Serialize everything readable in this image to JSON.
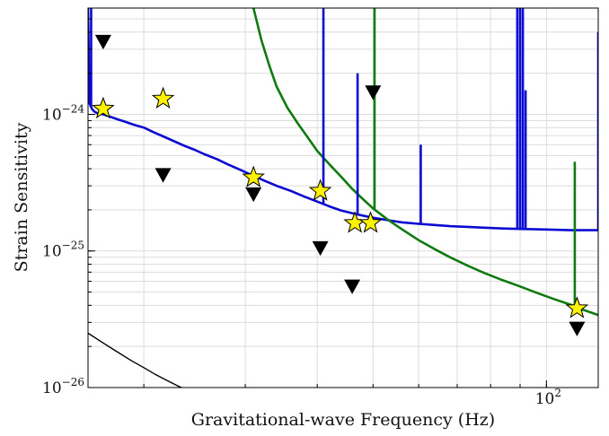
{
  "chart_data": {
    "type": "line",
    "title": "",
    "xlabel": "Gravitational-wave Frequency (Hz)",
    "ylabel": "Strain Sensitivity",
    "xscale": "log",
    "yscale": "log",
    "xlim": [
      16.0,
      123.0
    ],
    "ylim": [
      1e-26,
      6e-24
    ],
    "grid": true,
    "legend": "none",
    "x_ticks": [
      {
        "value": 100,
        "base": "10",
        "exp": "2"
      }
    ],
    "y_ticks": [
      {
        "value": 1e-26,
        "base": "10",
        "exp": "−26"
      },
      {
        "value": 1e-25,
        "base": "10",
        "exp": "−25"
      },
      {
        "value": 1e-24,
        "base": "10",
        "exp": "−24"
      }
    ],
    "colors": {
      "blue_curve": "#0a0ad2",
      "green_curve": "#0f7a0f",
      "black_curve": "#000000",
      "star_fill": "#fff200",
      "triangle_fill": "#000000",
      "grid": "#dcdcdc"
    },
    "series": [
      {
        "style": "blue-line",
        "x": [
          16.0,
          16.1,
          16.25,
          16.4,
          16.6,
          17.0,
          17.5,
          18.0,
          18.6,
          19.2,
          20.0,
          20.8,
          21.6,
          22.5,
          23.5,
          24.5,
          25.5,
          26.8,
          28.0,
          29.5,
          31.0,
          32.5,
          34.0,
          36.0,
          38.0,
          40.0,
          42.0,
          44.0,
          47.0,
          50.0,
          53.0,
          56.0,
          60.0,
          64.0,
          68.0,
          73.0,
          78.0,
          84.0,
          90.0,
          96.0,
          103.0,
          110.0,
          116.0,
          123.0
        ],
        "y": [
          6e-24,
          1.2e-24,
          1.1e-24,
          1.05e-24,
          1.02e-24,
          1e-24,
          9.6e-25,
          9.2e-25,
          8.8e-25,
          8.4e-25,
          8e-25,
          7.4e-25,
          6.9e-25,
          6.4e-25,
          5.9e-25,
          5.5e-25,
          5.1e-25,
          4.7e-25,
          4.3e-25,
          3.9e-25,
          3.55e-25,
          3.25e-25,
          3e-25,
          2.75e-25,
          2.5e-25,
          2.3e-25,
          2.12e-25,
          1.98e-25,
          1.85e-25,
          1.75e-25,
          1.68e-25,
          1.62e-25,
          1.58e-25,
          1.55e-25,
          1.52e-25,
          1.5e-25,
          1.48e-25,
          1.46e-25,
          1.45e-25,
          1.44e-25,
          1.43e-25,
          1.42e-25,
          1.42e-25,
          1.42e-25
        ]
      },
      {
        "style": "green-line",
        "x": [
          31.0,
          32.0,
          33.0,
          34.0,
          35.5,
          37.0,
          38.5,
          40.0,
          42.0,
          44.0,
          46.0,
          48.0,
          50.0,
          53.0,
          56.0,
          60.0,
          64.0,
          68.0,
          73.0,
          78.0,
          84.0,
          90.0,
          96.0,
          103.0,
          110.0,
          116.0,
          123.0
        ],
        "y": [
          6e-24,
          3.5e-24,
          2.3e-24,
          1.6e-24,
          1.12e-24,
          8.6e-25,
          6.8e-25,
          5.4e-25,
          4.3e-25,
          3.5e-25,
          2.85e-25,
          2.4e-25,
          2.05e-25,
          1.7e-25,
          1.45e-25,
          1.2e-25,
          1.03e-25,
          9e-26,
          7.8e-26,
          6.9e-26,
          6.1e-26,
          5.5e-26,
          4.95e-26,
          4.45e-26,
          4.05e-26,
          3.7e-26,
          3.4e-26
        ]
      },
      {
        "style": "black-line",
        "x": [
          16.0,
          17.0,
          18.0,
          19.0,
          20.0,
          21.0,
          22.0,
          23.0,
          24.3
        ],
        "y": [
          2.5e-26,
          2.12e-26,
          1.82e-26,
          1.58e-26,
          1.4e-26,
          1.24e-26,
          1.12e-26,
          1.02e-26,
          9.2e-27
        ]
      }
    ],
    "spikes": [
      {
        "style": "blue-line",
        "x": 16.2,
        "y": 6e-24
      },
      {
        "style": "blue-line",
        "x": 41.0,
        "y": 6e-24
      },
      {
        "style": "blue-line",
        "x": 47.0,
        "y": 2e-24
      },
      {
        "style": "blue-line",
        "x": 60.5,
        "y": 6e-25
      },
      {
        "style": "blue-line",
        "x": 89.0,
        "y": 6e-24
      },
      {
        "style": "blue-line",
        "x": 90.0,
        "y": 6e-24
      },
      {
        "style": "blue-line",
        "x": 91.0,
        "y": 6e-24
      },
      {
        "style": "blue-line",
        "x": 92.0,
        "y": 1.5e-24
      },
      {
        "style": "blue-line",
        "x": 123.0,
        "y": 4e-24
      },
      {
        "style": "green-line",
        "x": 50.3,
        "y": 6e-24
      },
      {
        "style": "green-line",
        "x": 112.0,
        "y": 4.5e-25
      }
    ],
    "stars": [
      {
        "x": 17.0,
        "y": 1.1e-24
      },
      {
        "x": 21.6,
        "y": 1.3e-24
      },
      {
        "x": 31.0,
        "y": 3.45e-25
      },
      {
        "x": 40.5,
        "y": 2.75e-25
      },
      {
        "x": 46.5,
        "y": 1.6e-25
      },
      {
        "x": 49.5,
        "y": 1.6e-25
      },
      {
        "x": 113.0,
        "y": 3.8e-26
      }
    ],
    "triangles": [
      {
        "x": 17.0,
        "y": 3.4e-24
      },
      {
        "x": 21.6,
        "y": 3.6e-25
      },
      {
        "x": 31.0,
        "y": 2.6e-25
      },
      {
        "x": 40.5,
        "y": 1.05e-25
      },
      {
        "x": 46.0,
        "y": 5.5e-26
      },
      {
        "x": 50.0,
        "y": 1.45e-24
      },
      {
        "x": 113.0,
        "y": 2.7e-26
      }
    ]
  }
}
